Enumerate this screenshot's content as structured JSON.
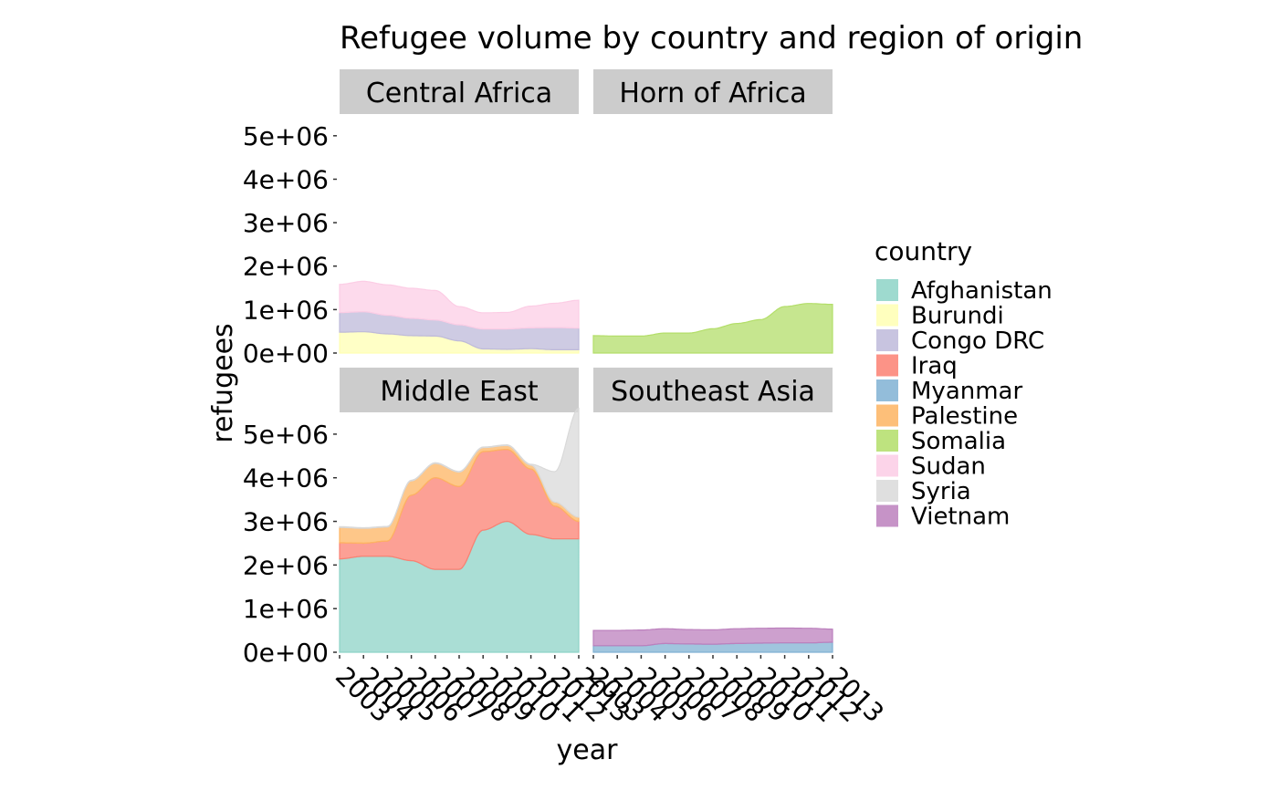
{
  "chart_data": {
    "type": "area",
    "subtype": "streamgraph",
    "title": "Refugee volume by country and region of origin",
    "xlabel": "year",
    "ylabel": "refugees",
    "ylim": [
      0,
      5500000
    ],
    "yticks": [
      "0e+00",
      "1e+06",
      "2e+06",
      "3e+06",
      "4e+06",
      "5e+06"
    ],
    "ytick_values": [
      0,
      1000000,
      2000000,
      3000000,
      4000000,
      5000000
    ],
    "xticks": [
      "2003",
      "2004",
      "2005",
      "2006",
      "2007",
      "2008",
      "2009",
      "2010",
      "2011",
      "2012",
      "2013"
    ],
    "x": [
      2003,
      2004,
      2005,
      2006,
      2007,
      2008,
      2009,
      2010,
      2011,
      2012,
      2013
    ],
    "grid": false,
    "legend": {
      "title": "country",
      "position": "right",
      "entries": [
        {
          "name": "Afghanistan",
          "color": "#8DD3C7"
        },
        {
          "name": "Burundi",
          "color": "#FFFFB3"
        },
        {
          "name": "Congo DRC",
          "color": "#BEBADA"
        },
        {
          "name": "Iraq",
          "color": "#FB8072"
        },
        {
          "name": "Myanmar",
          "color": "#80B1D3"
        },
        {
          "name": "Palestine",
          "color": "#FDB462"
        },
        {
          "name": "Somalia",
          "color": "#B3DE69"
        },
        {
          "name": "Sudan",
          "color": "#FCCDE5"
        },
        {
          "name": "Syria",
          "color": "#D9D9D9"
        },
        {
          "name": "Vietnam",
          "color": "#BC80BD"
        }
      ]
    },
    "facets": [
      {
        "label": "Central Africa",
        "series": [
          {
            "name": "Burundi",
            "values": [
              480000,
              490000,
              440000,
              400000,
              390000,
              280000,
              95000,
              85000,
              100000,
              75000,
              75000
            ]
          },
          {
            "name": "Congo DRC",
            "values": [
              450000,
              460000,
              430000,
              400000,
              370000,
              370000,
              460000,
              470000,
              480000,
              510000,
              500000
            ]
          },
          {
            "name": "Sudan",
            "values": [
              650000,
              700000,
              700000,
              690000,
              680000,
              420000,
              370000,
              380000,
              500000,
              560000,
              640000
            ]
          }
        ]
      },
      {
        "label": "Horn of Africa",
        "series": [
          {
            "name": "Somalia",
            "values": [
              400000,
              390000,
              390000,
              460000,
              460000,
              560000,
              680000,
              770000,
              1070000,
              1140000,
              1120000
            ]
          }
        ]
      },
      {
        "label": "Middle East",
        "series": [
          {
            "name": "Afghanistan",
            "values": [
              2140000,
              2200000,
              2200000,
              2100000,
              1900000,
              1900000,
              2800000,
              3000000,
              2700000,
              2600000,
              2600000
            ]
          },
          {
            "name": "Iraq",
            "values": [
              370000,
              300000,
              350000,
              1500000,
              2100000,
              1900000,
              1800000,
              1650000,
              1500000,
              750000,
              400000
            ]
          },
          {
            "name": "Palestine",
            "values": [
              350000,
              340000,
              320000,
              330000,
              330000,
              330000,
              90000,
              90000,
              90000,
              90000,
              95000
            ]
          },
          {
            "name": "Syria",
            "values": [
              20000,
              15000,
              15000,
              15000,
              15000,
              15000,
              15000,
              15000,
              20000,
              700000,
              2500000
            ]
          }
        ]
      },
      {
        "label": "Southeast Asia",
        "series": [
          {
            "name": "Myanmar",
            "values": [
              150000,
              150000,
              150000,
              200000,
              190000,
              185000,
              200000,
              210000,
              215000,
              215000,
              230000
            ]
          },
          {
            "name": "Vietnam",
            "values": [
              350000,
              350000,
              360000,
              340000,
              330000,
              330000,
              340000,
              340000,
              340000,
              335000,
              300000
            ]
          }
        ]
      }
    ]
  }
}
